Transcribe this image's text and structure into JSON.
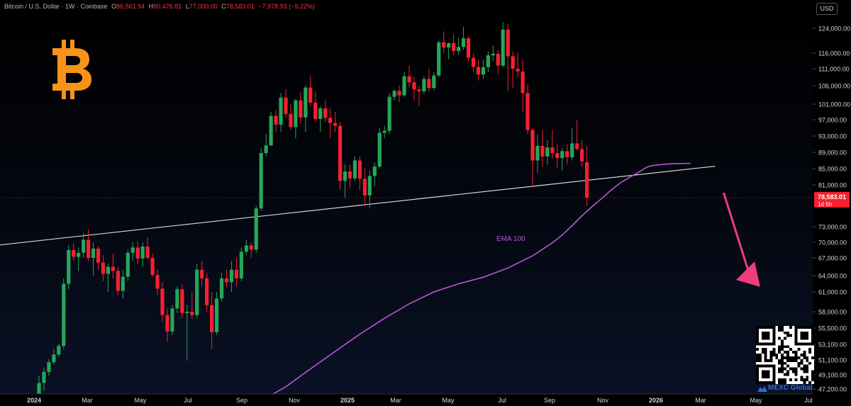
{
  "header": {
    "symbol": "Bitcoin / U.S. Dollar · 1W · Coinbase",
    "open_label": "O",
    "open": "86,561.94",
    "high_label": "H",
    "high": "90,476.81",
    "low_label": "L",
    "low": "77,000.00",
    "close_label": "C",
    "close": "78,583.01",
    "change": "−7,978.93 (−9.22%)"
  },
  "currency_button": "USD",
  "brand": "MEXC Global",
  "colors": {
    "up": "#26a65b",
    "down": "#f7202f",
    "ema": "#b757d6",
    "trendline": "#d8d8d8",
    "arrow": "#ee3d7a",
    "logo": "#f7931a",
    "background": "#000000"
  },
  "icons": [
    "bitcoin-logo-icon",
    "qr-code-icon",
    "mexc-logo-icon"
  ],
  "chart_data": {
    "type": "candlestick",
    "timeframe": "1W",
    "ylim": [
      47200,
      127200
    ],
    "y_ticks": [
      "124,000.00",
      "116,000.00",
      "111,000.00",
      "106,000.00",
      "101,000.00",
      "97,000.00",
      "93,000.00",
      "89,000.00",
      "85,000.00",
      "81,000.00",
      "73,000.00",
      "70,000.00",
      "67,000.00",
      "64,000.00",
      "61,000.00",
      "58,000.00",
      "55,500.00",
      "53,100.00",
      "51,100.00",
      "49,100.00",
      "47,200.00"
    ],
    "y_tick_values": [
      124000,
      116000,
      111000,
      106000,
      101000,
      97000,
      93000,
      89000,
      85000,
      81000,
      73000,
      70000,
      67000,
      64000,
      61000,
      58000,
      55500,
      53100,
      51100,
      49100,
      47200
    ],
    "x_ticks": [
      "2024",
      "Mar",
      "May",
      "Jul",
      "Sep",
      "Nov",
      "2025",
      "Mar",
      "May",
      "Jul",
      "Sep",
      "Nov",
      "2026",
      "Mar",
      "May",
      "Jul"
    ],
    "last_price_label": "78,583.01",
    "countdown_label": "1d 6h",
    "annotations": {
      "ema_label": "EMA 100"
    },
    "candles": [
      [
        45000,
        49000,
        44500,
        48000
      ],
      [
        48000,
        50000,
        47000,
        49500
      ],
      [
        49500,
        51200,
        49000,
        50800
      ],
      [
        50800,
        52500,
        50500,
        51800
      ],
      [
        51800,
        53200,
        51500,
        52900
      ],
      [
        52900,
        63500,
        52500,
        62500
      ],
      [
        62500,
        69500,
        61500,
        68500
      ],
      [
        68500,
        69800,
        66500,
        67200
      ],
      [
        67200,
        69000,
        64800,
        68000
      ],
      [
        68000,
        71800,
        67000,
        70500
      ],
      [
        70500,
        72500,
        66500,
        67000
      ],
      [
        67000,
        70000,
        64000,
        68800
      ],
      [
        68800,
        69200,
        65000,
        66200
      ],
      [
        66200,
        67500,
        63000,
        64300
      ],
      [
        64300,
        66000,
        61000,
        65500
      ],
      [
        65500,
        67800,
        63500,
        64800
      ],
      [
        64800,
        65500,
        60500,
        61200
      ],
      [
        61200,
        65000,
        60000,
        63800
      ],
      [
        63800,
        68500,
        63000,
        68000
      ],
      [
        68000,
        70000,
        66500,
        69000
      ],
      [
        69000,
        70200,
        66000,
        66900
      ],
      [
        66900,
        70000,
        65500,
        69200
      ],
      [
        69200,
        71000,
        66800,
        67000
      ],
      [
        67000,
        67800,
        63800,
        64100
      ],
      [
        64100,
        65000,
        60500,
        61600
      ],
      [
        61600,
        62800,
        56500,
        57500
      ],
      [
        57500,
        58500,
        53500,
        55000
      ],
      [
        55000,
        59000,
        54500,
        58500
      ],
      [
        58500,
        62000,
        57800,
        61500
      ],
      [
        61500,
        62500,
        57000,
        57800
      ],
      [
        57800,
        59000,
        51000,
        58000
      ],
      [
        58000,
        61000,
        57000,
        57500
      ],
      [
        57500,
        66000,
        57000,
        65000
      ],
      [
        65000,
        66500,
        62000,
        63500
      ],
      [
        63500,
        64500,
        58000,
        59000
      ],
      [
        59000,
        61000,
        52500,
        54900
      ],
      [
        54900,
        61000,
        54500,
        60000
      ],
      [
        60000,
        64500,
        59500,
        63500
      ],
      [
        63500,
        65000,
        61800,
        62800
      ],
      [
        62800,
        66500,
        61000,
        65000
      ],
      [
        65000,
        67000,
        62000,
        63500
      ],
      [
        63500,
        69000,
        63000,
        68200
      ],
      [
        68200,
        70500,
        67500,
        69400
      ],
      [
        69400,
        70000,
        67000,
        68600
      ],
      [
        68600,
        77000,
        68000,
        76500
      ],
      [
        76500,
        90000,
        76000,
        88800
      ],
      [
        88800,
        93500,
        88000,
        90700
      ],
      [
        90700,
        99000,
        90500,
        98000
      ],
      [
        98000,
        99500,
        94000,
        95800
      ],
      [
        95800,
        104000,
        94000,
        102800
      ],
      [
        102800,
        105000,
        97500,
        98500
      ],
      [
        98500,
        101000,
        94500,
        95200
      ],
      [
        95200,
        102500,
        92500,
        102000
      ],
      [
        102000,
        104200,
        96000,
        97600
      ],
      [
        97600,
        106000,
        94000,
        105500
      ],
      [
        105500,
        109000,
        100500,
        101400
      ],
      [
        101400,
        104500,
        96500,
        97200
      ],
      [
        97200,
        100500,
        94000,
        99900
      ],
      [
        99900,
        102000,
        96500,
        97500
      ],
      [
        97500,
        100000,
        92500,
        96200
      ],
      [
        96200,
        99000,
        94000,
        95500
      ],
      [
        95500,
        96500,
        80000,
        82000
      ],
      [
        82000,
        86000,
        78500,
        84300
      ],
      [
        84300,
        86000,
        80500,
        82600
      ],
      [
        82600,
        88000,
        82000,
        87000
      ],
      [
        87000,
        88000,
        80000,
        82500
      ],
      [
        82500,
        85000,
        77000,
        79000
      ],
      [
        79000,
        84500,
        76500,
        83200
      ],
      [
        83200,
        86500,
        80800,
        85500
      ],
      [
        85500,
        95000,
        85000,
        93800
      ],
      [
        93800,
        95500,
        92500,
        94300
      ],
      [
        94300,
        104000,
        93500,
        103000
      ],
      [
        103000,
        105000,
        102000,
        104600
      ],
      [
        104600,
        106000,
        101500,
        103400
      ],
      [
        103400,
        110000,
        103000,
        108800
      ],
      [
        108800,
        112000,
        105500,
        107000
      ],
      [
        107000,
        108500,
        102000,
        105000
      ],
      [
        105000,
        106000,
        100500,
        104500
      ],
      [
        104500,
        108800,
        103800,
        108000
      ],
      [
        108000,
        111000,
        104500,
        105400
      ],
      [
        105400,
        110000,
        104800,
        109000
      ],
      [
        109000,
        120000,
        108500,
        119500
      ],
      [
        119500,
        123000,
        116000,
        117800
      ],
      [
        117800,
        119500,
        114000,
        119200
      ],
      [
        119200,
        122000,
        115500,
        116700
      ],
      [
        116700,
        121000,
        115500,
        118000
      ],
      [
        118000,
        124500,
        117000,
        120800
      ],
      [
        120800,
        121500,
        113500,
        114500
      ],
      [
        114500,
        116000,
        110000,
        111600
      ],
      [
        111600,
        114000,
        107500,
        109300
      ],
      [
        109300,
        114000,
        108000,
        111500
      ],
      [
        111500,
        116500,
        110000,
        115300
      ],
      [
        115300,
        118500,
        113500,
        115800
      ],
      [
        115800,
        117000,
        109500,
        112000
      ],
      [
        112000,
        126000,
        111500,
        123600
      ],
      [
        123600,
        125500,
        104500,
        115000
      ],
      [
        115000,
        116500,
        105500,
        111000
      ],
      [
        111000,
        116000,
        108500,
        110200
      ],
      [
        110200,
        114000,
        99000,
        104000
      ],
      [
        104000,
        106500,
        93500,
        94500
      ],
      [
        94500,
        95000,
        80500,
        87000
      ],
      [
        87000,
        93500,
        84000,
        90600
      ],
      [
        90600,
        94500,
        85500,
        88000
      ],
      [
        88000,
        92000,
        86000,
        90200
      ],
      [
        90200,
        94500,
        87500,
        88800
      ],
      [
        88800,
        91000,
        85000,
        87600
      ],
      [
        87600,
        90000,
        84500,
        89300
      ],
      [
        89300,
        91000,
        86000,
        87800
      ],
      [
        87800,
        95000,
        87000,
        91200
      ],
      [
        91200,
        97000,
        89500,
        89800
      ],
      [
        89800,
        92000,
        85500,
        86800
      ],
      [
        86561.94,
        90476.81,
        77000,
        78583.01
      ]
    ],
    "ema100": [
      [
        41,
        44000
      ],
      [
        45,
        45600
      ],
      [
        50,
        47500
      ],
      [
        55,
        49900
      ],
      [
        60,
        52200
      ],
      [
        65,
        54600
      ],
      [
        70,
        57000
      ],
      [
        75,
        59200
      ],
      [
        80,
        61000
      ],
      [
        85,
        62500
      ],
      [
        90,
        63700
      ],
      [
        95,
        65300
      ],
      [
        100,
        67400
      ],
      [
        104,
        69900
      ],
      [
        106,
        71400
      ],
      [
        108,
        73200
      ],
      [
        110,
        75100
      ],
      [
        112,
        76800
      ],
      [
        114,
        78400
      ],
      [
        116,
        80100
      ],
      [
        118,
        81700
      ],
      [
        120,
        83100
      ],
      [
        122,
        84500
      ],
      [
        123,
        85300
      ],
      [
        124,
        85700
      ],
      [
        126,
        86000
      ],
      [
        128,
        86200
      ],
      [
        132,
        86300
      ]
    ],
    "trendline": [
      [
        0,
        69500
      ],
      [
        137,
        85600
      ]
    ],
    "projection_arrow": {
      "from": [
        114,
        79500
      ],
      "to": [
        123,
        61500
      ]
    }
  }
}
